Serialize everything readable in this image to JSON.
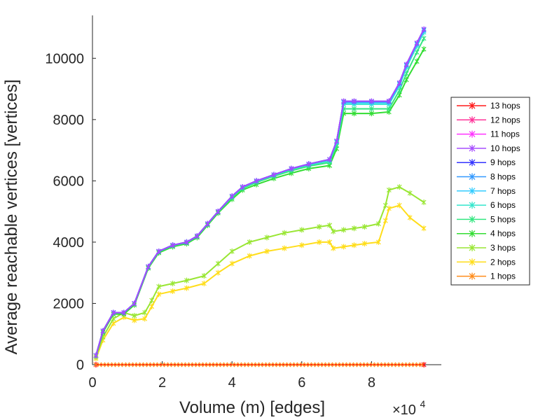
{
  "chart_data": {
    "type": "line",
    "title": "",
    "xlabel": "Volume (m) [edges]",
    "ylabel": "Average reachable vertices [vertices]",
    "x_multiplier_label": "×10",
    "x_multiplier_exp": "4",
    "xlim": [
      0,
      100000
    ],
    "ylim": [
      0,
      11400
    ],
    "xticks": [
      0,
      20000,
      40000,
      60000,
      80000
    ],
    "xtick_labels": [
      "0",
      "2",
      "4",
      "6",
      "8"
    ],
    "yticks": [
      0,
      2000,
      4000,
      6000,
      8000,
      10000
    ],
    "ytick_labels": [
      "0",
      "2000",
      "4000",
      "6000",
      "8000",
      "10000"
    ],
    "legend_position": "right",
    "series": [
      {
        "name": "13 hops",
        "color": "#ff1a1a",
        "x": [
          1000,
          95000
        ],
        "y": [
          0,
          0
        ]
      },
      {
        "name": "12 hops",
        "color": "#ff3399",
        "x": [
          1000,
          95000
        ],
        "y": [
          0,
          0
        ]
      },
      {
        "name": "11 hops",
        "color": "#ff33ff",
        "x": [
          1000,
          95000
        ],
        "y": [
          0,
          0
        ]
      },
      {
        "name": "10 hops",
        "color": "#a64dff",
        "x": [
          1000,
          3000,
          6000,
          9000,
          12000,
          16000,
          19000,
          23000,
          27000,
          30000,
          33000,
          36000,
          40000,
          43000,
          47000,
          52000,
          57000,
          62000,
          68000,
          70000,
          72000,
          75000,
          80000,
          85000,
          88000,
          90000,
          93000,
          95000
        ],
        "y": [
          300,
          1100,
          1700,
          1700,
          2000,
          3200,
          3700,
          3900,
          4000,
          4200,
          4600,
          5000,
          5500,
          5800,
          6000,
          6200,
          6400,
          6550,
          6700,
          7300,
          8600,
          8600,
          8600,
          8600,
          9200,
          9800,
          10500,
          10950
        ]
      },
      {
        "name": "9 hops",
        "color": "#3333ff",
        "x": [
          1000,
          3000,
          6000,
          9000,
          12000,
          16000,
          19000,
          23000,
          27000,
          30000,
          33000,
          36000,
          40000,
          43000,
          47000,
          52000,
          57000,
          62000,
          68000,
          70000,
          72000,
          75000,
          80000,
          85000,
          88000,
          90000,
          93000,
          95000
        ],
        "y": [
          300,
          1100,
          1700,
          1700,
          2000,
          3200,
          3700,
          3900,
          4000,
          4200,
          4600,
          5000,
          5500,
          5800,
          6000,
          6200,
          6400,
          6550,
          6700,
          7300,
          8600,
          8600,
          8600,
          8600,
          9200,
          9800,
          10500,
          10950
        ]
      },
      {
        "name": "8 hops",
        "color": "#3399ff",
        "x": [
          1000,
          3000,
          6000,
          9000,
          12000,
          16000,
          19000,
          23000,
          27000,
          30000,
          33000,
          36000,
          40000,
          43000,
          47000,
          52000,
          57000,
          62000,
          68000,
          70000,
          72000,
          75000,
          80000,
          85000,
          88000,
          90000,
          93000,
          95000
        ],
        "y": [
          300,
          1100,
          1700,
          1700,
          2000,
          3200,
          3700,
          3900,
          4000,
          4200,
          4600,
          5000,
          5500,
          5800,
          6000,
          6200,
          6400,
          6550,
          6700,
          7300,
          8580,
          8580,
          8580,
          8580,
          9180,
          9780,
          10480,
          10930
        ]
      },
      {
        "name": "7 hops",
        "color": "#33ccff",
        "x": [
          1000,
          3000,
          6000,
          9000,
          12000,
          16000,
          19000,
          23000,
          27000,
          30000,
          33000,
          36000,
          40000,
          43000,
          47000,
          52000,
          57000,
          62000,
          68000,
          70000,
          72000,
          75000,
          80000,
          85000,
          88000,
          90000,
          93000,
          95000
        ],
        "y": [
          300,
          1100,
          1700,
          1700,
          2000,
          3200,
          3700,
          3900,
          4000,
          4200,
          4600,
          5000,
          5500,
          5800,
          6000,
          6200,
          6400,
          6550,
          6700,
          7280,
          8550,
          8550,
          8550,
          8550,
          9150,
          9750,
          10450,
          10900
        ]
      },
      {
        "name": "6 hops",
        "color": "#33e6cc",
        "x": [
          1000,
          3000,
          6000,
          9000,
          12000,
          16000,
          19000,
          23000,
          27000,
          30000,
          33000,
          36000,
          40000,
          43000,
          47000,
          52000,
          57000,
          62000,
          68000,
          70000,
          72000,
          75000,
          80000,
          85000,
          88000,
          90000,
          93000,
          95000
        ],
        "y": [
          300,
          1100,
          1700,
          1700,
          2000,
          3200,
          3700,
          3900,
          4000,
          4200,
          4600,
          5000,
          5480,
          5780,
          5980,
          6180,
          6380,
          6520,
          6650,
          7250,
          8500,
          8500,
          8500,
          8500,
          9100,
          9700,
          10400,
          10850
        ]
      },
      {
        "name": "5 hops",
        "color": "#33e680",
        "x": [
          1000,
          3000,
          6000,
          9000,
          12000,
          16000,
          19000,
          23000,
          27000,
          30000,
          33000,
          36000,
          40000,
          43000,
          47000,
          52000,
          57000,
          62000,
          68000,
          70000,
          72000,
          75000,
          80000,
          85000,
          88000,
          90000,
          93000,
          95000
        ],
        "y": [
          300,
          1100,
          1700,
          1700,
          2000,
          3180,
          3680,
          3880,
          3980,
          4180,
          4580,
          4980,
          5450,
          5750,
          5950,
          6150,
          6330,
          6480,
          6600,
          7150,
          8350,
          8350,
          8350,
          8350,
          8950,
          9500,
          10200,
          10650
        ]
      },
      {
        "name": "4 hops",
        "color": "#33dd33",
        "x": [
          1000,
          3000,
          6000,
          9000,
          12000,
          16000,
          19000,
          23000,
          27000,
          30000,
          33000,
          36000,
          40000,
          43000,
          47000,
          52000,
          57000,
          62000,
          68000,
          70000,
          72000,
          75000,
          80000,
          85000,
          88000,
          90000,
          93000,
          95000
        ],
        "y": [
          300,
          1050,
          1650,
          1650,
          1950,
          3150,
          3650,
          3850,
          3950,
          4150,
          4550,
          4950,
          5400,
          5700,
          5880,
          6080,
          6250,
          6400,
          6500,
          7050,
          8200,
          8200,
          8200,
          8250,
          8800,
          9300,
          9900,
          10300
        ]
      },
      {
        "name": "3 hops",
        "color": "#99e633",
        "x": [
          1000,
          3000,
          6000,
          9000,
          12000,
          15000,
          17000,
          19000,
          23000,
          27000,
          32000,
          36000,
          40000,
          45000,
          50000,
          55000,
          60000,
          65000,
          68000,
          69000,
          72000,
          75000,
          78000,
          82000,
          84000,
          85000,
          88000,
          91000,
          95000
        ],
        "y": [
          250,
          900,
          1500,
          1700,
          1600,
          1700,
          2100,
          2550,
          2650,
          2750,
          2900,
          3300,
          3700,
          4000,
          4150,
          4300,
          4400,
          4500,
          4550,
          4350,
          4400,
          4450,
          4500,
          4600,
          5200,
          5700,
          5800,
          5600,
          5300
        ]
      },
      {
        "name": "2 hops",
        "color": "#ffdd1a",
        "x": [
          1000,
          3000,
          6000,
          9000,
          12000,
          15000,
          17000,
          19000,
          23000,
          27000,
          32000,
          36000,
          40000,
          45000,
          50000,
          55000,
          60000,
          65000,
          68000,
          69000,
          72000,
          75000,
          78000,
          82000,
          84000,
          85000,
          88000,
          91000,
          95000
        ],
        "y": [
          200,
          800,
          1350,
          1550,
          1450,
          1500,
          1900,
          2300,
          2400,
          2500,
          2650,
          3000,
          3300,
          3550,
          3700,
          3800,
          3900,
          4000,
          4000,
          3800,
          3850,
          3900,
          3950,
          4000,
          4700,
          5100,
          5200,
          4800,
          4450
        ]
      },
      {
        "name": "1 hops",
        "color": "#ff8c1a",
        "x": [
          1000,
          95000
        ],
        "y": [
          0,
          0
        ]
      }
    ]
  }
}
